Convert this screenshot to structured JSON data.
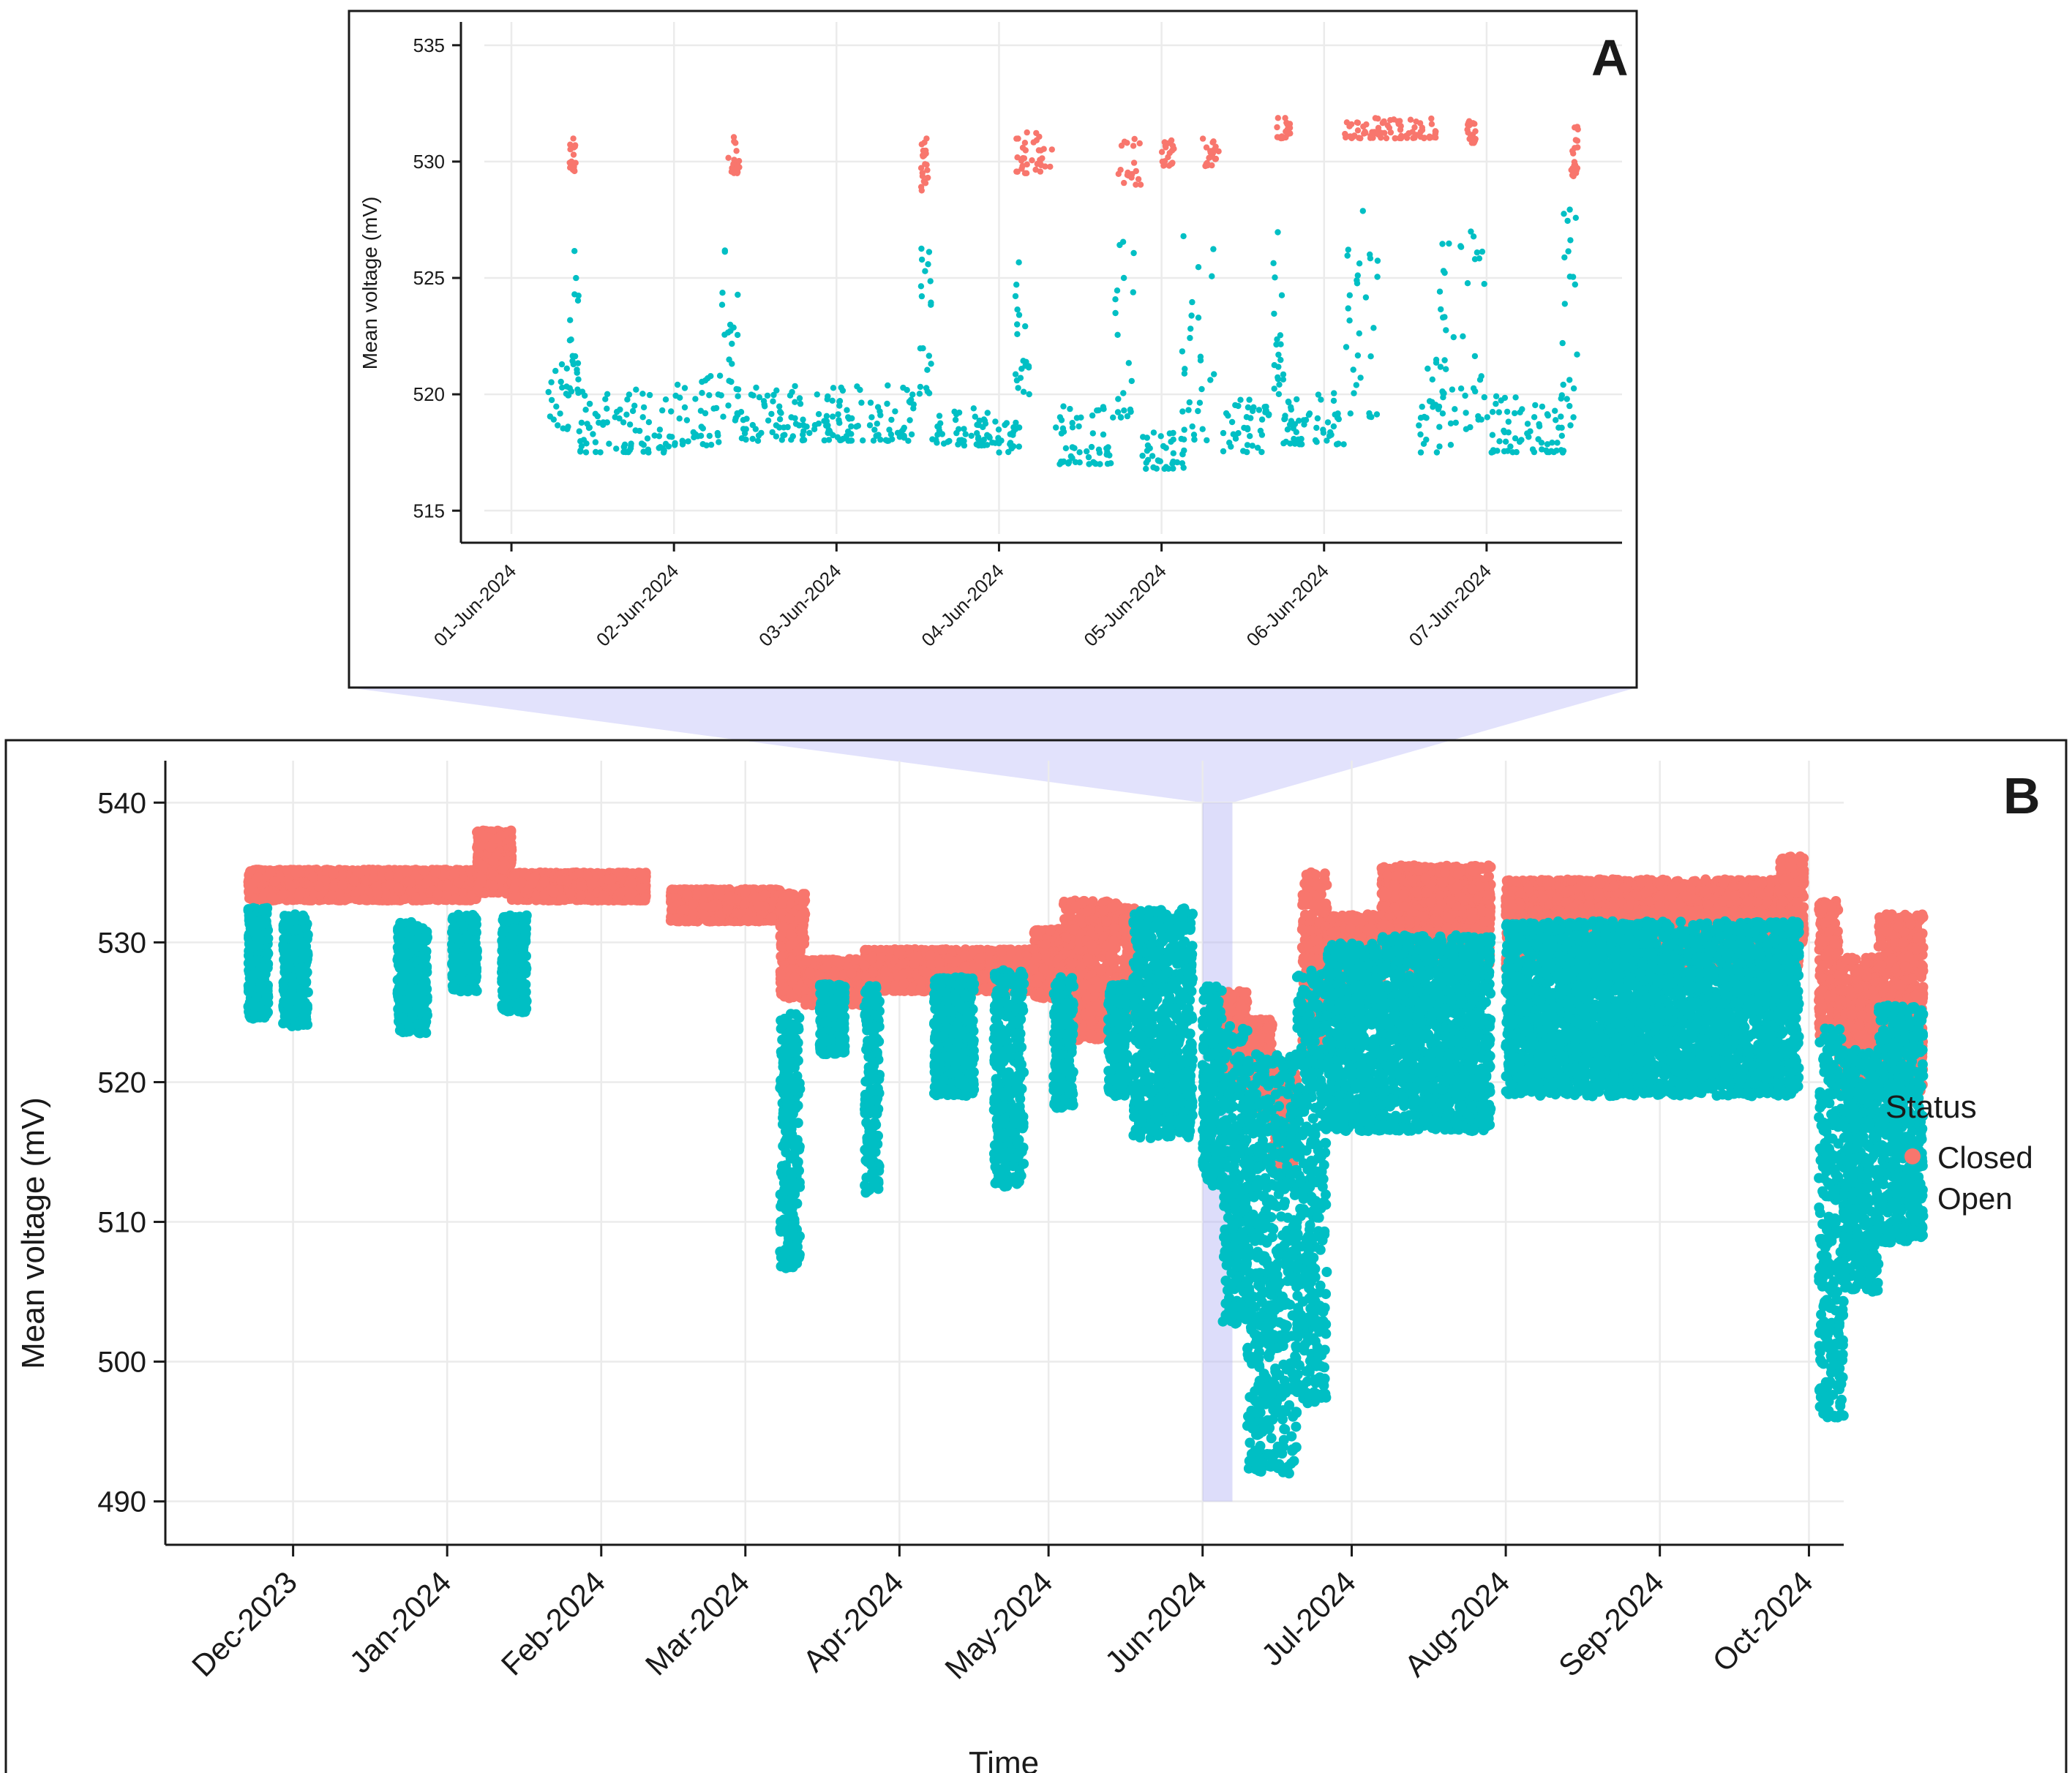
{
  "chart_data": [
    {
      "panel": "A",
      "type": "scatter",
      "title": "",
      "xlabel": "",
      "ylabel": "Mean voltage (mV)",
      "xlim": [
        "2024-05-31T20:00",
        "2024-06-07T20:00"
      ],
      "ylim": [
        514,
        536
      ],
      "x_ticks": [
        "01-Jun-2024",
        "02-Jun-2024",
        "03-Jun-2024",
        "04-Jun-2024",
        "05-Jun-2024",
        "06-Jun-2024",
        "07-Jun-2024"
      ],
      "y_ticks": [
        515,
        520,
        525,
        530,
        535
      ],
      "grid": true,
      "series": [
        {
          "name": "Closed",
          "color": "#F8766D",
          "clusters": [
            {
              "start": "2024-06-01T08:30",
              "end": "2024-06-01T09:30",
              "ymin": 529.5,
              "ymax": 531.0
            },
            {
              "start": "2024-06-02T08:00",
              "end": "2024-06-02T10:00",
              "ymin": 529.5,
              "ymax": 531.2
            },
            {
              "start": "2024-06-03T12:30",
              "end": "2024-06-03T13:30",
              "ymin": 528.5,
              "ymax": 531.0
            },
            {
              "start": "2024-06-04T02:00",
              "end": "2024-06-04T08:00",
              "ymin": 529.5,
              "ymax": 531.3
            },
            {
              "start": "2024-06-04T17:30",
              "end": "2024-06-04T21:00",
              "ymin": 529.0,
              "ymax": 531.0
            },
            {
              "start": "2024-06-05T00:00",
              "end": "2024-06-05T02:00",
              "ymin": 529.8,
              "ymax": 531.0
            },
            {
              "start": "2024-06-05T06:00",
              "end": "2024-06-05T08:30",
              "ymin": 529.8,
              "ymax": 531.0
            },
            {
              "start": "2024-06-05T17:00",
              "end": "2024-06-05T19:00",
              "ymin": 531.0,
              "ymax": 531.9
            },
            {
              "start": "2024-06-06T03:00",
              "end": "2024-06-06T17:00",
              "ymin": 531.0,
              "ymax": 531.9
            },
            {
              "start": "2024-06-06T21:00",
              "end": "2024-06-06T22:30",
              "ymin": 530.8,
              "ymax": 531.9
            },
            {
              "start": "2024-06-07T12:30",
              "end": "2024-06-07T13:30",
              "ymin": 529.3,
              "ymax": 531.5
            }
          ]
        },
        {
          "name": "Open",
          "color": "#00BFC4",
          "clusters": [
            {
              "start": "2024-06-01T05:00",
              "end": "2024-06-01T08:30",
              "ymin": 518.5,
              "ymax": 521.5
            },
            {
              "start": "2024-06-01T08:30",
              "end": "2024-06-01T10:00",
              "ymin": 520.0,
              "ymax": 526.5
            },
            {
              "start": "2024-06-01T10:00",
              "end": "2024-06-02T00:00",
              "ymin": 517.5,
              "ymax": 520.5
            },
            {
              "start": "2024-06-02T00:00",
              "end": "2024-06-02T07:00",
              "ymin": 517.8,
              "ymax": 521.0
            },
            {
              "start": "2024-06-02T07:00",
              "end": "2024-06-02T09:30",
              "ymin": 519.0,
              "ymax": 526.5
            },
            {
              "start": "2024-06-02T09:00",
              "end": "2024-06-03T00:00",
              "ymin": 518.0,
              "ymax": 520.5
            },
            {
              "start": "2024-06-03T00:00",
              "end": "2024-06-03T12:00",
              "ymin": 518.0,
              "ymax": 520.5
            },
            {
              "start": "2024-06-03T12:00",
              "end": "2024-06-03T14:00",
              "ymin": 520.0,
              "ymax": 526.3
            },
            {
              "start": "2024-06-03T14:00",
              "end": "2024-06-04T00:00",
              "ymin": 517.8,
              "ymax": 519.5
            },
            {
              "start": "2024-06-04T00:00",
              "end": "2024-06-04T03:00",
              "ymin": 517.5,
              "ymax": 519.0
            },
            {
              "start": "2024-06-04T02:00",
              "end": "2024-06-04T04:30",
              "ymin": 520.0,
              "ymax": 526.5
            },
            {
              "start": "2024-06-04T08:00",
              "end": "2024-06-04T17:00",
              "ymin": 517.0,
              "ymax": 519.5
            },
            {
              "start": "2024-06-04T17:00",
              "end": "2024-06-04T20:00",
              "ymin": 519.0,
              "ymax": 527.0
            },
            {
              "start": "2024-06-04T21:00",
              "end": "2024-06-05T03:30",
              "ymin": 516.8,
              "ymax": 518.5
            },
            {
              "start": "2024-06-05T03:00",
              "end": "2024-06-05T08:00",
              "ymin": 518.0,
              "ymax": 527.0
            },
            {
              "start": "2024-06-05T09:00",
              "end": "2024-06-05T16:00",
              "ymin": 517.5,
              "ymax": 520.0
            },
            {
              "start": "2024-06-05T16:30",
              "end": "2024-06-05T18:00",
              "ymin": 520.0,
              "ymax": 527.0
            },
            {
              "start": "2024-06-05T18:00",
              "end": "2024-06-06T03:00",
              "ymin": 517.8,
              "ymax": 520.2
            },
            {
              "start": "2024-06-06T03:00",
              "end": "2024-06-06T08:00",
              "ymin": 519.0,
              "ymax": 528.0
            },
            {
              "start": "2024-06-06T14:00",
              "end": "2024-06-06T19:00",
              "ymin": 517.5,
              "ymax": 521.5
            },
            {
              "start": "2024-06-06T17:00",
              "end": "2024-06-07T00:00",
              "ymin": 518.5,
              "ymax": 527.0
            },
            {
              "start": "2024-06-07T00:00",
              "end": "2024-06-07T11:30",
              "ymin": 517.5,
              "ymax": 520.0
            },
            {
              "start": "2024-06-07T11:00",
              "end": "2024-06-07T13:30",
              "ymin": 518.5,
              "ymax": 528.0
            }
          ]
        }
      ]
    },
    {
      "panel": "B",
      "type": "scatter",
      "title": "",
      "xlabel": "Time",
      "ylabel": "Mean voltage (mV)",
      "xlim": [
        "2023-11-05",
        "2024-10-08"
      ],
      "ylim": [
        487,
        543
      ],
      "x_ticks": [
        "Dec-2023",
        "Jan-2024",
        "Feb-2024",
        "Mar-2024",
        "Apr-2024",
        "May-2024",
        "Jun-2024",
        "Jul-2024",
        "Aug-2024",
        "Sep-2024",
        "Oct-2024"
      ],
      "y_ticks": [
        490,
        500,
        510,
        520,
        530,
        540
      ],
      "grid": true,
      "highlight": {
        "start": "2024-06-01",
        "end": "2024-06-07",
        "color": "#c8c8f8",
        "zoom_panel": "A"
      },
      "series": [
        {
          "name": "Closed",
          "color": "#F8766D",
          "segments": [
            {
              "start": "2023-11-22",
              "end": "2024-01-07",
              "ymin": 533.0,
              "ymax": 535.2
            },
            {
              "start": "2024-01-07",
              "end": "2024-01-14",
              "ymin": 533.5,
              "ymax": 538.0
            },
            {
              "start": "2024-01-14",
              "end": "2024-02-10",
              "ymin": 533.0,
              "ymax": 535.0
            },
            {
              "start": "2024-02-15",
              "end": "2024-03-08",
              "ymin": 531.5,
              "ymax": 533.8
            },
            {
              "start": "2024-03-08",
              "end": "2024-03-13",
              "ymin": 526.0,
              "ymax": 533.5
            },
            {
              "start": "2024-03-13",
              "end": "2024-03-25",
              "ymin": 525.5,
              "ymax": 528.8
            },
            {
              "start": "2024-03-25",
              "end": "2024-04-28",
              "ymin": 526.5,
              "ymax": 529.5
            },
            {
              "start": "2024-04-28",
              "end": "2024-05-04",
              "ymin": 526.0,
              "ymax": 531.0
            },
            {
              "start": "2024-05-04",
              "end": "2024-05-15",
              "ymin": 523.0,
              "ymax": 533.0
            },
            {
              "start": "2024-05-16",
              "end": "2024-05-19",
              "ymin": 524.5,
              "ymax": 532.5
            },
            {
              "start": "2024-06-05",
              "end": "2024-06-10",
              "ymin": 519.5,
              "ymax": 526.5
            },
            {
              "start": "2024-06-10",
              "end": "2024-06-15",
              "ymin": 518.0,
              "ymax": 524.5
            },
            {
              "start": "2024-06-15",
              "end": "2024-06-20",
              "ymin": 514.0,
              "ymax": 521.5
            },
            {
              "start": "2024-06-21",
              "end": "2024-06-26",
              "ymin": 522.0,
              "ymax": 535.0
            },
            {
              "start": "2024-06-26",
              "end": "2024-07-07",
              "ymin": 527.0,
              "ymax": 532.0
            },
            {
              "start": "2024-07-07",
              "end": "2024-07-29",
              "ymin": 528.0,
              "ymax": 535.5
            },
            {
              "start": "2024-08-01",
              "end": "2024-09-29",
              "ymin": 528.0,
              "ymax": 534.5
            },
            {
              "start": "2024-09-25",
              "end": "2024-09-30",
              "ymin": 530.0,
              "ymax": 536.2
            },
            {
              "start": "2024-10-03",
              "end": "2024-10-07",
              "ymin": 523.0,
              "ymax": 533.0
            },
            {
              "start": "2024-10-07",
              "end": "2024-10-15",
              "ymin": 519.0,
              "ymax": 529.0
            },
            {
              "start": "2024-10-15",
              "end": "2024-10-24",
              "ymin": 519.0,
              "ymax": 532.0
            }
          ]
        },
        {
          "name": "Open",
          "color": "#00BFC4",
          "segments": [
            {
              "start": "2023-11-22",
              "end": "2023-11-26",
              "ymin": 524.5,
              "ymax": 532.5
            },
            {
              "start": "2023-11-29",
              "end": "2023-12-04",
              "ymin": 524.0,
              "ymax": 532.0
            },
            {
              "start": "2023-12-22",
              "end": "2023-12-28",
              "ymin": 523.5,
              "ymax": 531.5
            },
            {
              "start": "2024-01-02",
              "end": "2024-01-07",
              "ymin": 526.5,
              "ymax": 532.0
            },
            {
              "start": "2024-01-12",
              "end": "2024-01-17",
              "ymin": 525.0,
              "ymax": 532.0
            },
            {
              "start": "2024-03-08",
              "end": "2024-03-12",
              "ymin": 506.5,
              "ymax": 525.0
            },
            {
              "start": "2024-03-16",
              "end": "2024-03-21",
              "ymin": 522.0,
              "ymax": 527.0
            },
            {
              "start": "2024-03-25",
              "end": "2024-03-28",
              "ymin": 512.0,
              "ymax": 527.0
            },
            {
              "start": "2024-04-08",
              "end": "2024-04-16",
              "ymin": 519.0,
              "ymax": 527.5
            },
            {
              "start": "2024-04-20",
              "end": "2024-04-26",
              "ymin": 512.5,
              "ymax": 528.0
            },
            {
              "start": "2024-05-02",
              "end": "2024-05-06",
              "ymin": 518.0,
              "ymax": 527.5
            },
            {
              "start": "2024-05-13",
              "end": "2024-05-17",
              "ymin": 519.0,
              "ymax": 527.0
            },
            {
              "start": "2024-05-18",
              "end": "2024-05-30",
              "ymin": 516.0,
              "ymax": 532.5
            },
            {
              "start": "2024-06-01",
              "end": "2024-06-05",
              "ymin": 512.5,
              "ymax": 527.0
            },
            {
              "start": "2024-06-05",
              "end": "2024-06-10",
              "ymin": 502.5,
              "ymax": 524.0
            },
            {
              "start": "2024-06-10",
              "end": "2024-06-20",
              "ymin": 492.0,
              "ymax": 522.0
            },
            {
              "start": "2024-06-20",
              "end": "2024-06-26",
              "ymin": 497.0,
              "ymax": 528.0
            },
            {
              "start": "2024-06-26",
              "end": "2024-07-07",
              "ymin": 516.5,
              "ymax": 530.0
            },
            {
              "start": "2024-07-07",
              "end": "2024-07-29",
              "ymin": 516.5,
              "ymax": 530.5
            },
            {
              "start": "2024-08-01",
              "end": "2024-09-29",
              "ymin": 519.0,
              "ymax": 531.5
            },
            {
              "start": "2024-10-03",
              "end": "2024-10-08",
              "ymin": 496.0,
              "ymax": 524.0
            },
            {
              "start": "2024-10-08",
              "end": "2024-10-15",
              "ymin": 505.0,
              "ymax": 522.5
            },
            {
              "start": "2024-10-15",
              "end": "2024-10-24",
              "ymin": 508.5,
              "ymax": 525.5
            }
          ]
        }
      ],
      "legend": {
        "title": "Status",
        "placement": "right",
        "items": [
          "Closed",
          "Open"
        ]
      }
    }
  ],
  "panel_labels": {
    "a": "A",
    "b": "B"
  },
  "legend": {
    "title": "Status",
    "closed": "Closed",
    "open": "Open",
    "closed_color": "#F8766D",
    "open_color": "#00BFC4"
  },
  "axis_labels": {
    "a_ylabel": "Mean voltage (mV)",
    "b_ylabel": "Mean voltage (mV)",
    "b_xlabel": "Time"
  }
}
